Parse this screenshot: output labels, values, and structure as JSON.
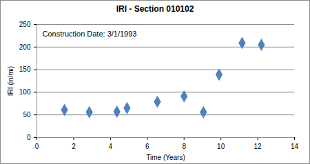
{
  "chart_data": {
    "type": "scatter",
    "title": "IRI - Section 010102",
    "annotation": "Construction Date: 3/1/1993",
    "x_label": "Time (Years)",
    "y_label": "IRI (in/mi)",
    "x": [
      1.5,
      2.85,
      4.35,
      4.9,
      6.55,
      8.0,
      9.05,
      9.9,
      11.15,
      12.2
    ],
    "values": [
      61,
      56,
      57,
      65,
      79,
      91,
      56,
      139,
      209,
      205
    ],
    "color": "#4f81bd",
    "marker": "diamond",
    "xlim": [
      0,
      14
    ],
    "xticks": [
      0,
      2,
      4,
      6,
      8,
      10,
      12,
      14
    ],
    "ylim": [
      0,
      250
    ],
    "yticks": [
      0,
      50,
      100,
      150,
      200,
      250
    ],
    "grid": true
  }
}
